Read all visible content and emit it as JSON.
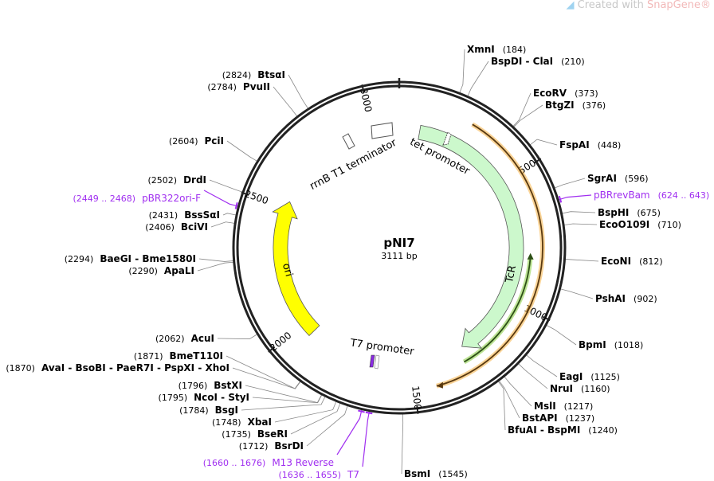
{
  "watermark": {
    "prefix": "Created with",
    "brand": "SnapGene®",
    "icon": "snapgene-logo-icon"
  },
  "plasmid": {
    "name": "pNI7",
    "length_label": "3111 bp",
    "length": 3111
  },
  "ticks": [
    500,
    1000,
    1500,
    2000,
    2500,
    3000
  ],
  "features": [
    {
      "name": "TcR",
      "start": 86,
      "end": 1276,
      "color": "#ccf8cc",
      "direction": "forward"
    },
    {
      "name": "ori",
      "start": 1890,
      "end": 2480,
      "color": "#ffff00",
      "direction": "reverse"
    },
    {
      "name": "tet promoter",
      "color": "#ffffff"
    },
    {
      "name": "rrnB T1 terminator",
      "color": "#ffffff"
    },
    {
      "name": "T7 promoter",
      "color": "#8a2be2"
    }
  ],
  "orf_color": "#f5b041",
  "inner_orf_color": "#8fd14f",
  "enzymes": [
    {
      "name": "XmnI",
      "pos": 184
    },
    {
      "name": "BspDI  - ClaI",
      "pos": 210
    },
    {
      "name": "EcoRV",
      "pos": 373
    },
    {
      "name": "BtgZI",
      "pos": 376
    },
    {
      "name": "FspAI",
      "pos": 448
    },
    {
      "name": "SgrAI",
      "pos": 596
    },
    {
      "name": "BspHI",
      "pos": 675
    },
    {
      "name": "EcoO109I",
      "pos": 710
    },
    {
      "name": "EcoNI",
      "pos": 812
    },
    {
      "name": "PshAI",
      "pos": 902
    },
    {
      "name": "BpmI",
      "pos": 1018
    },
    {
      "name": "EagI",
      "pos": 1125
    },
    {
      "name": "NruI",
      "pos": 1160
    },
    {
      "name": "MslI",
      "pos": 1217
    },
    {
      "name": "BstAPI",
      "pos": 1237
    },
    {
      "name": "BfuAI  - BspMI",
      "pos": 1240
    },
    {
      "name": "BsmI",
      "pos": 1545
    },
    {
      "name": "BtsαI",
      "pos": 2824
    },
    {
      "name": "PvuII",
      "pos": 2784
    },
    {
      "name": "PciI",
      "pos": 2604
    },
    {
      "name": "DrdI",
      "pos": 2502
    },
    {
      "name": "BssSαI",
      "pos": 2431
    },
    {
      "name": "BciVI",
      "pos": 2406
    },
    {
      "name": "BaeGI  - Bme1580I",
      "pos": 2294
    },
    {
      "name": "ApaLI",
      "pos": 2290
    },
    {
      "name": "AcuI",
      "pos": 2062
    },
    {
      "name": "BmeT110I",
      "pos": 1871
    },
    {
      "name": "AvaI  - BsoBI  - PaeR7I  - PspXI  - XhoI",
      "pos": 1870
    },
    {
      "name": "BstXI",
      "pos": 1796
    },
    {
      "name": "NcoI  - StyI",
      "pos": 1795
    },
    {
      "name": "BsgI",
      "pos": 1784
    },
    {
      "name": "XbaI",
      "pos": 1748
    },
    {
      "name": "BseRI",
      "pos": 1735
    },
    {
      "name": "BsrDI",
      "pos": 1712
    }
  ],
  "primers": [
    {
      "name": "pBRrevBam",
      "range": "(624 .. 643)",
      "pos": 633,
      "color": "#a02ff0"
    },
    {
      "name": "pBR322ori-F",
      "range": "(2449 .. 2468)",
      "pos": 2458,
      "color": "#a02ff0"
    },
    {
      "name": "M13 Reverse",
      "range": "(1660 .. 1676)",
      "pos": 1668,
      "color": "#a02ff0"
    },
    {
      "name": "T7",
      "range": "(1636 .. 1655)",
      "pos": 1645,
      "color": "#a02ff0"
    }
  ]
}
